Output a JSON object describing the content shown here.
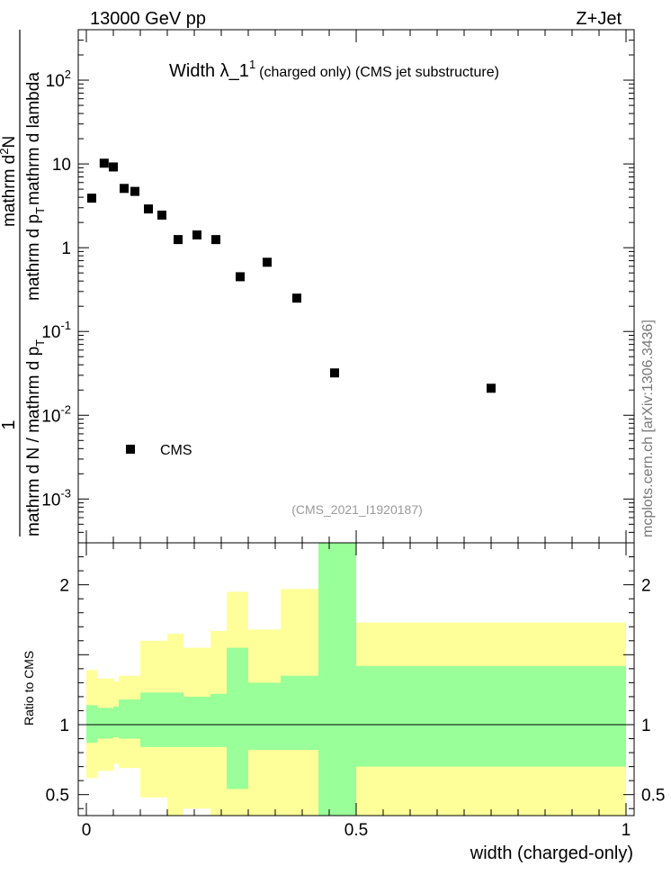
{
  "header": {
    "left": "13000 GeV pp",
    "right": "Z+Jet"
  },
  "plot_title": {
    "main": "Width λ_1",
    "superscript": "1",
    "detail": "(charged only) (CMS jet substructure)"
  },
  "analysis_id": "(CMS_2021_I1920187)",
  "side_label": "mcplots.cern.ch [arXiv:1306.3436]",
  "y_label_parts": {
    "one": "1",
    "denominator": "mathrm d N / mathrm d p",
    "denominator_sub": "T",
    "numerator_a": "mathrm d",
    "numerator_sup": "2",
    "numerator_b": "N",
    "numerator_c": "mathrm d p",
    "numerator_sub": "T",
    "numerator_d": "mathrm d lambda"
  },
  "legend": {
    "label": "CMS"
  },
  "ratio_ylabel": "Ratio to CMS",
  "xlabel": "width (charged-only)",
  "chart_data": [
    {
      "type": "scatter",
      "xlim": [
        -0.015,
        1.015
      ],
      "ylim": [
        0.0003,
        400
      ],
      "yscale": "log",
      "legend_position": "bottom-left",
      "y_ticks": [
        {
          "value": 0.001,
          "label": "10^-3"
        },
        {
          "value": 0.01,
          "label": "10^-2"
        },
        {
          "value": 0.1,
          "label": "10^-1"
        },
        {
          "value": 1,
          "label": "1"
        },
        {
          "value": 10,
          "label": "10"
        },
        {
          "value": 100,
          "label": "10^2"
        }
      ],
      "series": [
        {
          "name": "CMS",
          "color": "#000000",
          "points": [
            {
              "x": 0.01,
              "y": 3.9
            },
            {
              "x": 0.033,
              "y": 10.2
            },
            {
              "x": 0.05,
              "y": 9.2
            },
            {
              "x": 0.07,
              "y": 5.1
            },
            {
              "x": 0.09,
              "y": 4.7
            },
            {
              "x": 0.115,
              "y": 2.9
            },
            {
              "x": 0.14,
              "y": 2.45
            },
            {
              "x": 0.17,
              "y": 1.25
            },
            {
              "x": 0.205,
              "y": 1.42
            },
            {
              "x": 0.24,
              "y": 1.25
            },
            {
              "x": 0.285,
              "y": 0.45
            },
            {
              "x": 0.335,
              "y": 0.67
            },
            {
              "x": 0.39,
              "y": 0.25
            },
            {
              "x": 0.46,
              "y": 0.032
            },
            {
              "x": 0.75,
              "y": 0.021
            }
          ]
        }
      ]
    },
    {
      "type": "area",
      "xlim": [
        -0.015,
        1.015
      ],
      "ylim": [
        0.35,
        2.3
      ],
      "y_ticks": [
        {
          "value": 0.5,
          "label": "0.5"
        },
        {
          "value": 1,
          "label": "1"
        },
        {
          "value": 2,
          "label": "2"
        }
      ],
      "x_ticks": [
        {
          "value": 0,
          "label": "0"
        },
        {
          "value": 0.5,
          "label": "0.5"
        },
        {
          "value": 1,
          "label": "1"
        }
      ],
      "reference_line": 1,
      "colors": {
        "stat": "#99ff99",
        "total": "#ffff99"
      },
      "bands": [
        {
          "x0": 0.0,
          "x1": 0.02,
          "stat_low": 0.87,
          "stat_high": 1.14,
          "tot_low": 0.62,
          "tot_high": 1.39
        },
        {
          "x0": 0.02,
          "x1": 0.05,
          "stat_low": 0.9,
          "stat_high": 1.12,
          "tot_low": 0.67,
          "tot_high": 1.33
        },
        {
          "x0": 0.05,
          "x1": 0.06,
          "stat_low": 0.91,
          "stat_high": 1.13,
          "tot_low": 0.72,
          "tot_high": 1.31
        },
        {
          "x0": 0.06,
          "x1": 0.1,
          "stat_low": 0.9,
          "stat_high": 1.18,
          "tot_low": 0.69,
          "tot_high": 1.35
        },
        {
          "x0": 0.1,
          "x1": 0.15,
          "stat_low": 0.84,
          "stat_high": 1.23,
          "tot_low": 0.48,
          "tot_high": 1.6
        },
        {
          "x0": 0.15,
          "x1": 0.18,
          "stat_low": 0.84,
          "stat_high": 1.23,
          "tot_low": 0.35,
          "tot_high": 1.65
        },
        {
          "x0": 0.18,
          "x1": 0.23,
          "stat_low": 0.84,
          "stat_high": 1.2,
          "tot_low": 0.4,
          "tot_high": 1.55
        },
        {
          "x0": 0.23,
          "x1": 0.26,
          "stat_low": 0.84,
          "stat_high": 1.22,
          "tot_low": 0.35,
          "tot_high": 1.67
        },
        {
          "x0": 0.26,
          "x1": 0.3,
          "stat_low": 0.54,
          "stat_high": 1.55,
          "tot_low": 0.35,
          "tot_high": 1.95
        },
        {
          "x0": 0.3,
          "x1": 0.36,
          "stat_low": 0.82,
          "stat_high": 1.3,
          "tot_low": 0.35,
          "tot_high": 1.68
        },
        {
          "x0": 0.36,
          "x1": 0.43,
          "stat_low": 0.82,
          "stat_high": 1.35,
          "tot_low": 0.35,
          "tot_high": 1.97
        },
        {
          "x0": 0.43,
          "x1": 0.5,
          "stat_low": 0.35,
          "stat_high": 2.3,
          "tot_low": 0.35,
          "tot_high": 2.3
        },
        {
          "x0": 0.5,
          "x1": 1.0,
          "stat_low": 0.7,
          "stat_high": 1.42,
          "tot_low": 0.35,
          "tot_high": 1.73
        }
      ]
    }
  ]
}
